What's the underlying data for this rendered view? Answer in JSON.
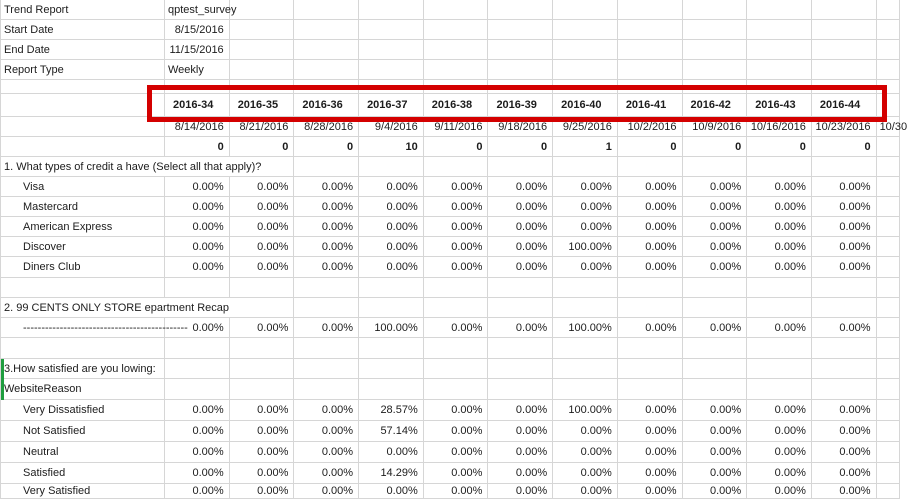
{
  "meta_rows": [
    {
      "label": "Trend Report",
      "value": "qptest_survey",
      "align": "left"
    },
    {
      "label": "Start Date",
      "value": "8/15/2016",
      "align": "right"
    },
    {
      "label": "End Date",
      "value": "11/15/2016",
      "align": "right"
    },
    {
      "label": "Report Type",
      "value": "Weekly",
      "align": "left"
    }
  ],
  "weeks": [
    "2016-34",
    "2016-35",
    "2016-36",
    "2016-37",
    "2016-38",
    "2016-39",
    "2016-40",
    "2016-41",
    "2016-42",
    "2016-43",
    "2016-44"
  ],
  "week_dates": [
    "8/14/2016",
    "8/21/2016",
    "8/28/2016",
    "9/4/2016",
    "9/11/2016",
    "9/18/2016",
    "9/25/2016",
    "10/2/2016",
    "10/9/2016",
    "10/16/2016",
    "10/23/2016"
  ],
  "overflow_date": "10/30",
  "weekly_counts": [
    "0",
    "0",
    "0",
    "10",
    "0",
    "0",
    "1",
    "0",
    "0",
    "0",
    "0"
  ],
  "sections": [
    {
      "title": "1. What types of credit a have (Select all that apply)?",
      "rows": [
        {
          "label": "Visa",
          "values": [
            "0.00%",
            "0.00%",
            "0.00%",
            "0.00%",
            "0.00%",
            "0.00%",
            "0.00%",
            "0.00%",
            "0.00%",
            "0.00%",
            "0.00%"
          ]
        },
        {
          "label": "Mastercard",
          "values": [
            "0.00%",
            "0.00%",
            "0.00%",
            "0.00%",
            "0.00%",
            "0.00%",
            "0.00%",
            "0.00%",
            "0.00%",
            "0.00%",
            "0.00%"
          ]
        },
        {
          "label": "American Express",
          "values": [
            "0.00%",
            "0.00%",
            "0.00%",
            "0.00%",
            "0.00%",
            "0.00%",
            "0.00%",
            "0.00%",
            "0.00%",
            "0.00%",
            "0.00%"
          ]
        },
        {
          "label": "Discover",
          "values": [
            "0.00%",
            "0.00%",
            "0.00%",
            "0.00%",
            "0.00%",
            "0.00%",
            "100.00%",
            "0.00%",
            "0.00%",
            "0.00%",
            "0.00%"
          ]
        },
        {
          "label": "Diners Club",
          "values": [
            "0.00%",
            "0.00%",
            "0.00%",
            "0.00%",
            "0.00%",
            "0.00%",
            "0.00%",
            "0.00%",
            "0.00%",
            "0.00%",
            "0.00%"
          ]
        }
      ]
    },
    {
      "title": "2. 99 CENTS ONLY STORE epartment Recap",
      "rows": [
        {
          "label": "---------------------------------------------",
          "values": [
            "0.00%",
            "0.00%",
            "0.00%",
            "100.00%",
            "0.00%",
            "0.00%",
            "100.00%",
            "0.00%",
            "0.00%",
            "0.00%",
            "0.00%"
          ]
        }
      ]
    },
    {
      "title": "3.How satisfied are you lowing:",
      "subtitle": "WebsiteReason",
      "rows": [
        {
          "label": "Very Dissatisfied",
          "values": [
            "0.00%",
            "0.00%",
            "0.00%",
            "28.57%",
            "0.00%",
            "0.00%",
            "100.00%",
            "0.00%",
            "0.00%",
            "0.00%",
            "0.00%"
          ]
        },
        {
          "label": "Not Satisfied",
          "values": [
            "0.00%",
            "0.00%",
            "0.00%",
            "57.14%",
            "0.00%",
            "0.00%",
            "0.00%",
            "0.00%",
            "0.00%",
            "0.00%",
            "0.00%"
          ]
        },
        {
          "label": "Neutral",
          "values": [
            "0.00%",
            "0.00%",
            "0.00%",
            "0.00%",
            "0.00%",
            "0.00%",
            "0.00%",
            "0.00%",
            "0.00%",
            "0.00%",
            "0.00%"
          ]
        },
        {
          "label": "Satisfied",
          "values": [
            "0.00%",
            "0.00%",
            "0.00%",
            "14.29%",
            "0.00%",
            "0.00%",
            "0.00%",
            "0.00%",
            "0.00%",
            "0.00%",
            "0.00%"
          ]
        },
        {
          "label": "Very Satisfied",
          "values": [
            "0.00%",
            "0.00%",
            "0.00%",
            "0.00%",
            "0.00%",
            "0.00%",
            "0.00%",
            "0.00%",
            "0.00%",
            "0.00%",
            "0.00%"
          ]
        }
      ]
    }
  ],
  "colors": {
    "gridline": "#d6d6d6",
    "text": "#1c1c1c",
    "highlight_box": "#d40000",
    "row_marker": "#1f9d3f"
  }
}
